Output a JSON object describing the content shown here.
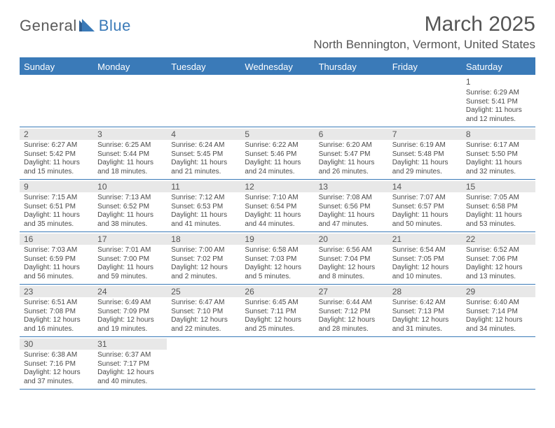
{
  "brand": {
    "part1": "General",
    "part2": "Blue"
  },
  "title": "March 2025",
  "location": "North Bennington, Vermont, United States",
  "colors": {
    "accent": "#3a7ab8",
    "text": "#555555",
    "cell_shade": "#e8e8e8",
    "background": "#ffffff"
  },
  "typography": {
    "title_fontsize": 30,
    "location_fontsize": 17,
    "dayhead_fontsize": 13,
    "daynum_fontsize": 12,
    "info_fontsize": 10
  },
  "day_headers": [
    "Sunday",
    "Monday",
    "Tuesday",
    "Wednesday",
    "Thursday",
    "Friday",
    "Saturday"
  ],
  "weeks": [
    [
      {
        "n": "",
        "lines": []
      },
      {
        "n": "",
        "lines": []
      },
      {
        "n": "",
        "lines": []
      },
      {
        "n": "",
        "lines": []
      },
      {
        "n": "",
        "lines": []
      },
      {
        "n": "",
        "lines": []
      },
      {
        "n": "1",
        "lines": [
          "Sunrise: 6:29 AM",
          "Sunset: 5:41 PM",
          "Daylight: 11 hours",
          "and 12 minutes."
        ]
      }
    ],
    [
      {
        "n": "2",
        "lines": [
          "Sunrise: 6:27 AM",
          "Sunset: 5:42 PM",
          "Daylight: 11 hours",
          "and 15 minutes."
        ]
      },
      {
        "n": "3",
        "lines": [
          "Sunrise: 6:25 AM",
          "Sunset: 5:44 PM",
          "Daylight: 11 hours",
          "and 18 minutes."
        ]
      },
      {
        "n": "4",
        "lines": [
          "Sunrise: 6:24 AM",
          "Sunset: 5:45 PM",
          "Daylight: 11 hours",
          "and 21 minutes."
        ]
      },
      {
        "n": "5",
        "lines": [
          "Sunrise: 6:22 AM",
          "Sunset: 5:46 PM",
          "Daylight: 11 hours",
          "and 24 minutes."
        ]
      },
      {
        "n": "6",
        "lines": [
          "Sunrise: 6:20 AM",
          "Sunset: 5:47 PM",
          "Daylight: 11 hours",
          "and 26 minutes."
        ]
      },
      {
        "n": "7",
        "lines": [
          "Sunrise: 6:19 AM",
          "Sunset: 5:48 PM",
          "Daylight: 11 hours",
          "and 29 minutes."
        ]
      },
      {
        "n": "8",
        "lines": [
          "Sunrise: 6:17 AM",
          "Sunset: 5:50 PM",
          "Daylight: 11 hours",
          "and 32 minutes."
        ]
      }
    ],
    [
      {
        "n": "9",
        "lines": [
          "Sunrise: 7:15 AM",
          "Sunset: 6:51 PM",
          "Daylight: 11 hours",
          "and 35 minutes."
        ]
      },
      {
        "n": "10",
        "lines": [
          "Sunrise: 7:13 AM",
          "Sunset: 6:52 PM",
          "Daylight: 11 hours",
          "and 38 minutes."
        ]
      },
      {
        "n": "11",
        "lines": [
          "Sunrise: 7:12 AM",
          "Sunset: 6:53 PM",
          "Daylight: 11 hours",
          "and 41 minutes."
        ]
      },
      {
        "n": "12",
        "lines": [
          "Sunrise: 7:10 AM",
          "Sunset: 6:54 PM",
          "Daylight: 11 hours",
          "and 44 minutes."
        ]
      },
      {
        "n": "13",
        "lines": [
          "Sunrise: 7:08 AM",
          "Sunset: 6:56 PM",
          "Daylight: 11 hours",
          "and 47 minutes."
        ]
      },
      {
        "n": "14",
        "lines": [
          "Sunrise: 7:07 AM",
          "Sunset: 6:57 PM",
          "Daylight: 11 hours",
          "and 50 minutes."
        ]
      },
      {
        "n": "15",
        "lines": [
          "Sunrise: 7:05 AM",
          "Sunset: 6:58 PM",
          "Daylight: 11 hours",
          "and 53 minutes."
        ]
      }
    ],
    [
      {
        "n": "16",
        "lines": [
          "Sunrise: 7:03 AM",
          "Sunset: 6:59 PM",
          "Daylight: 11 hours",
          "and 56 minutes."
        ]
      },
      {
        "n": "17",
        "lines": [
          "Sunrise: 7:01 AM",
          "Sunset: 7:00 PM",
          "Daylight: 11 hours",
          "and 59 minutes."
        ]
      },
      {
        "n": "18",
        "lines": [
          "Sunrise: 7:00 AM",
          "Sunset: 7:02 PM",
          "Daylight: 12 hours",
          "and 2 minutes."
        ]
      },
      {
        "n": "19",
        "lines": [
          "Sunrise: 6:58 AM",
          "Sunset: 7:03 PM",
          "Daylight: 12 hours",
          "and 5 minutes."
        ]
      },
      {
        "n": "20",
        "lines": [
          "Sunrise: 6:56 AM",
          "Sunset: 7:04 PM",
          "Daylight: 12 hours",
          "and 8 minutes."
        ]
      },
      {
        "n": "21",
        "lines": [
          "Sunrise: 6:54 AM",
          "Sunset: 7:05 PM",
          "Daylight: 12 hours",
          "and 10 minutes."
        ]
      },
      {
        "n": "22",
        "lines": [
          "Sunrise: 6:52 AM",
          "Sunset: 7:06 PM",
          "Daylight: 12 hours",
          "and 13 minutes."
        ]
      }
    ],
    [
      {
        "n": "23",
        "lines": [
          "Sunrise: 6:51 AM",
          "Sunset: 7:08 PM",
          "Daylight: 12 hours",
          "and 16 minutes."
        ]
      },
      {
        "n": "24",
        "lines": [
          "Sunrise: 6:49 AM",
          "Sunset: 7:09 PM",
          "Daylight: 12 hours",
          "and 19 minutes."
        ]
      },
      {
        "n": "25",
        "lines": [
          "Sunrise: 6:47 AM",
          "Sunset: 7:10 PM",
          "Daylight: 12 hours",
          "and 22 minutes."
        ]
      },
      {
        "n": "26",
        "lines": [
          "Sunrise: 6:45 AM",
          "Sunset: 7:11 PM",
          "Daylight: 12 hours",
          "and 25 minutes."
        ]
      },
      {
        "n": "27",
        "lines": [
          "Sunrise: 6:44 AM",
          "Sunset: 7:12 PM",
          "Daylight: 12 hours",
          "and 28 minutes."
        ]
      },
      {
        "n": "28",
        "lines": [
          "Sunrise: 6:42 AM",
          "Sunset: 7:13 PM",
          "Daylight: 12 hours",
          "and 31 minutes."
        ]
      },
      {
        "n": "29",
        "lines": [
          "Sunrise: 6:40 AM",
          "Sunset: 7:14 PM",
          "Daylight: 12 hours",
          "and 34 minutes."
        ]
      }
    ],
    [
      {
        "n": "30",
        "lines": [
          "Sunrise: 6:38 AM",
          "Sunset: 7:16 PM",
          "Daylight: 12 hours",
          "and 37 minutes."
        ]
      },
      {
        "n": "31",
        "lines": [
          "Sunrise: 6:37 AM",
          "Sunset: 7:17 PM",
          "Daylight: 12 hours",
          "and 40 minutes."
        ]
      },
      {
        "n": "",
        "lines": []
      },
      {
        "n": "",
        "lines": []
      },
      {
        "n": "",
        "lines": []
      },
      {
        "n": "",
        "lines": []
      },
      {
        "n": "",
        "lines": []
      }
    ]
  ]
}
